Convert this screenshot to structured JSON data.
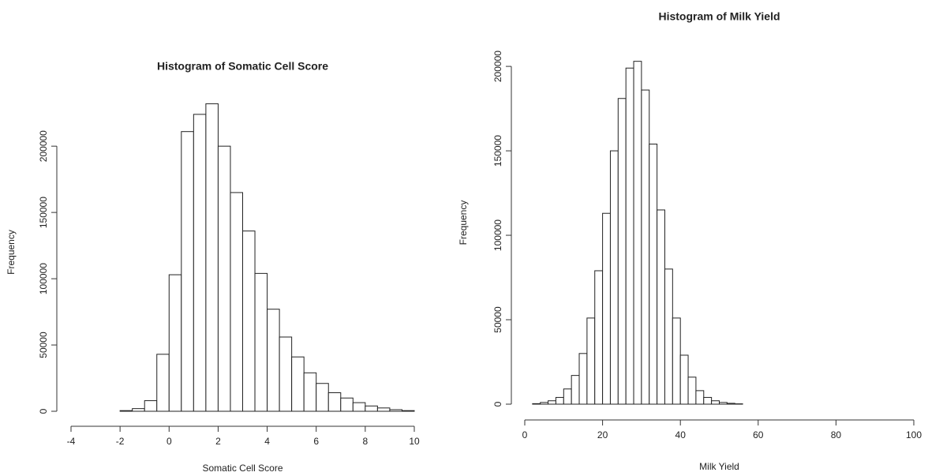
{
  "chart_data": [
    {
      "type": "histogram",
      "title": "Histogram of Somatic Cell Score",
      "xlabel": "Somatic Cell Score",
      "ylabel": "Frequency",
      "bins": [
        -4,
        -3.5,
        -3,
        -2.5,
        -2,
        -1.5,
        -1,
        -0.5,
        0,
        0.5,
        1,
        1.5,
        2,
        2.5,
        3,
        3.5,
        4,
        4.5,
        5,
        5.5,
        6,
        6.5,
        7,
        7.5,
        8,
        8.5,
        9,
        9.5,
        10
      ],
      "values": [
        0,
        0,
        0,
        0,
        500,
        2000,
        8000,
        43000,
        103000,
        211000,
        224000,
        232000,
        200000,
        165000,
        136000,
        104000,
        77000,
        56000,
        41000,
        29000,
        21000,
        14000,
        10000,
        6500,
        4000,
        2500,
        1200,
        500
      ],
      "color": "#ffffff",
      "xlim": [
        -4,
        10
      ],
      "ylim": [
        0,
        240000
      ],
      "xticks": [
        -4,
        -2,
        0,
        2,
        4,
        6,
        8,
        10
      ],
      "yticks": [
        0,
        50000,
        100000,
        150000,
        200000
      ]
    },
    {
      "type": "histogram",
      "title": "Histogram of Milk Yield",
      "xlabel": "Milk Yield",
      "ylabel": "Frequency",
      "bins": [
        0,
        2,
        4,
        6,
        8,
        10,
        12,
        14,
        16,
        18,
        20,
        22,
        24,
        26,
        28,
        30,
        32,
        34,
        36,
        38,
        40,
        42,
        44,
        46,
        48,
        50,
        52,
        54,
        56,
        58,
        60,
        62,
        64,
        66,
        68,
        70,
        72,
        74,
        76,
        78,
        80,
        82,
        84,
        86,
        88,
        90,
        92,
        94,
        96,
        98,
        100
      ],
      "values": [
        0,
        300,
        1000,
        2000,
        4000,
        9000,
        17000,
        30000,
        51000,
        79000,
        113000,
        150000,
        181000,
        199000,
        203000,
        186000,
        154000,
        115000,
        80000,
        51000,
        29000,
        16000,
        8000,
        4000,
        2000,
        1000,
        500,
        200,
        0,
        0,
        0,
        0,
        0,
        0,
        0,
        0,
        0,
        0,
        0,
        0,
        0,
        0,
        0,
        0,
        0,
        0,
        0,
        0,
        0,
        0
      ],
      "color": "#ffffff",
      "xlim": [
        0,
        100
      ],
      "ylim": [
        0,
        215000
      ],
      "xticks": [
        0,
        20,
        40,
        60,
        80,
        100
      ],
      "yticks": [
        0,
        50000,
        100000,
        150000,
        200000
      ]
    }
  ]
}
